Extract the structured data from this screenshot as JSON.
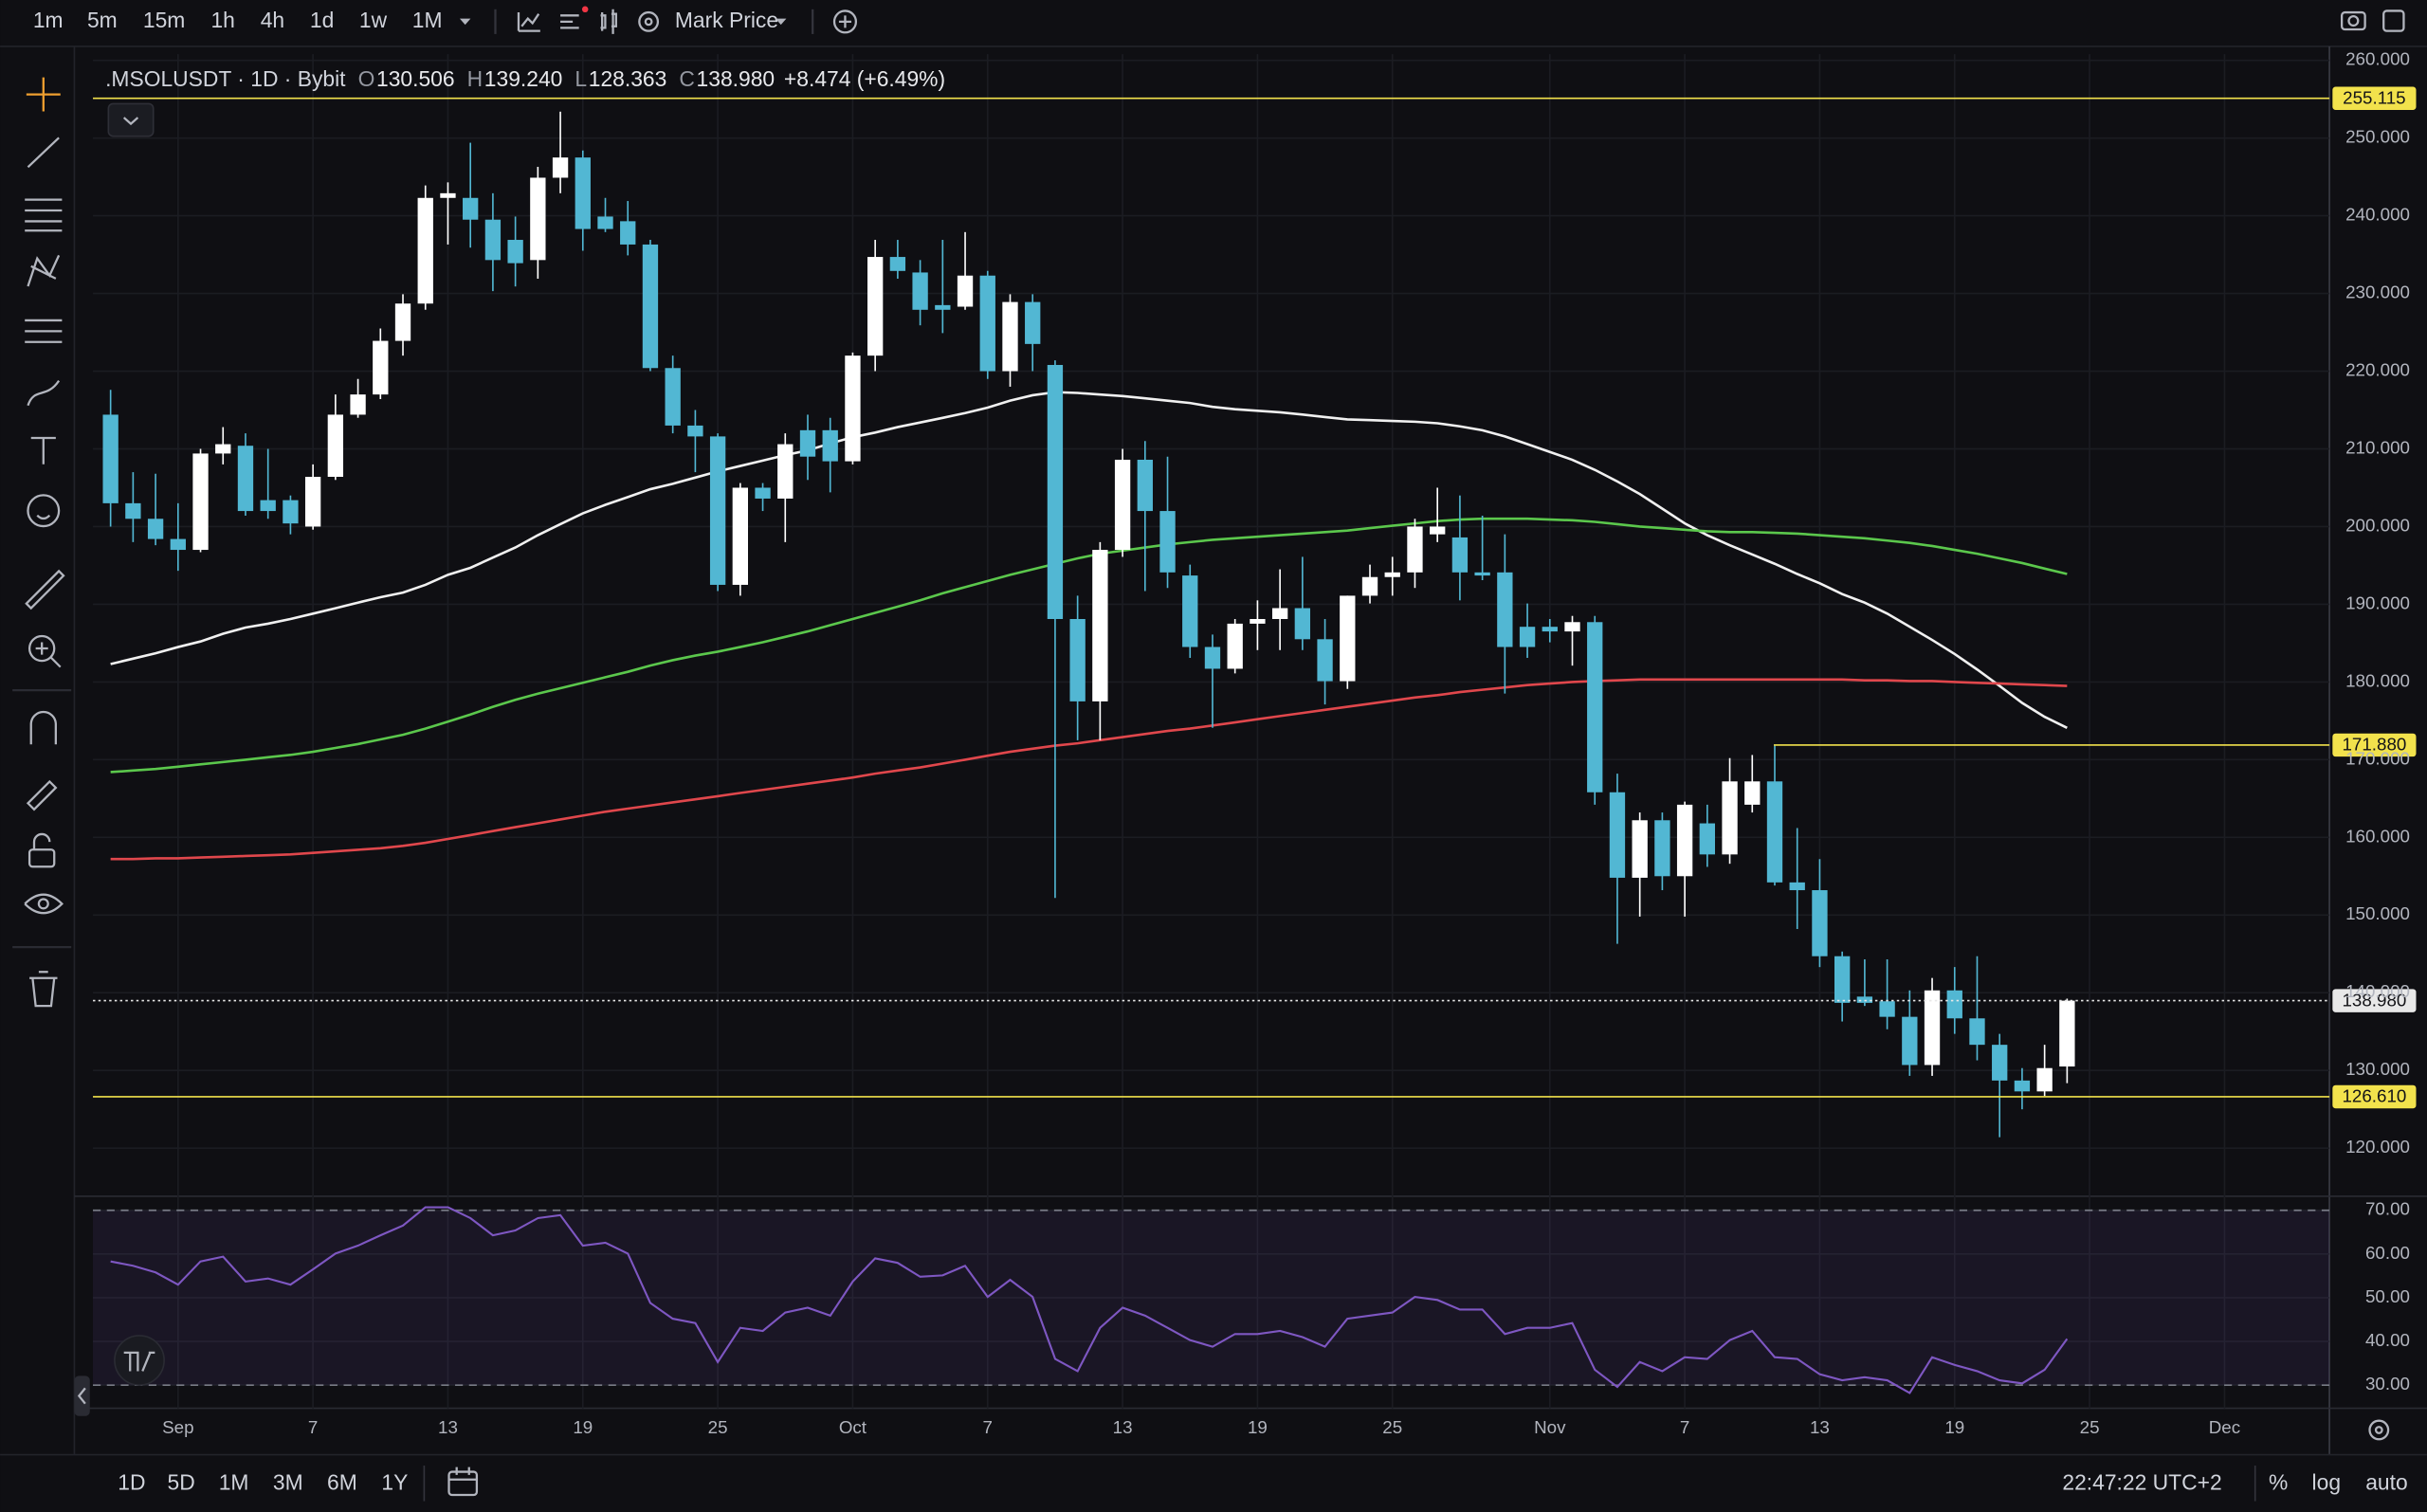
{
  "toolbar": {
    "intervals": [
      "1m",
      "5m",
      "15m",
      "1h",
      "4h",
      "1d",
      "1w",
      "1M"
    ],
    "active_interval": "1d",
    "price_type": "Mark Price"
  },
  "header": {
    "symbol": ".MSOLUSDT · 1D · Bybit",
    "fields": [
      {
        "key": "O",
        "value": "130.506"
      },
      {
        "key": "H",
        "value": "139.240"
      },
      {
        "key": "L",
        "value": "128.363"
      },
      {
        "key": "C",
        "value": "138.980"
      }
    ],
    "change": "+8.474 (+6.49%)"
  },
  "chart_data": [
    {
      "type": "candlestick",
      "categories": [
        null,
        null,
        null,
        "Sep",
        null,
        null,
        null,
        null,
        null,
        "7",
        null,
        null,
        null,
        null,
        null,
        "13",
        null,
        null,
        null,
        null,
        null,
        "19",
        null,
        null,
        null,
        null,
        null,
        "25",
        null,
        null,
        null,
        null,
        null,
        "Oct",
        null,
        null,
        null,
        null,
        null,
        "7",
        null,
        null,
        null,
        null,
        null,
        "13",
        null,
        null,
        null,
        null,
        null,
        "19",
        null,
        null,
        null,
        null,
        null,
        "25",
        null,
        null,
        null,
        null,
        null,
        null,
        "Nov",
        null,
        null,
        null,
        null,
        null,
        "7",
        null,
        null,
        null,
        null,
        null,
        "13",
        null,
        null,
        null,
        null,
        null,
        "19",
        null,
        null,
        null,
        null,
        null,
        "25",
        null,
        null,
        null,
        null,
        null,
        "Dec",
        null,
        null,
        null,
        null
      ],
      "open": [
        214.4,
        203.0,
        201.0,
        198.4,
        197.0,
        209.4,
        210.4,
        203.4,
        203.4,
        200.0,
        206.4,
        214.4,
        217.0,
        223.9,
        228.7,
        242.3,
        242.3,
        239.5,
        236.9,
        234.3,
        244.9,
        247.5,
        239.9,
        239.3,
        236.3,
        220.4,
        213.0,
        211.6,
        192.5,
        205.0,
        203.6,
        212.4,
        212.4,
        208.4,
        222.0,
        234.7,
        232.7,
        228.5,
        228.3,
        232.3,
        220.0,
        228.9,
        220.8,
        188.1,
        177.5,
        197.0,
        208.6,
        202.0,
        193.7,
        184.5,
        181.7,
        187.5,
        188.1,
        189.5,
        185.5,
        180.1,
        191.1,
        193.5,
        194.1,
        199.0,
        198.6,
        194.1,
        194.1,
        187.1,
        187.1,
        186.5,
        187.7,
        165.8,
        154.8,
        162.2,
        155.0,
        161.8,
        157.8,
        164.2,
        167.2,
        154.2,
        153.2,
        144.7,
        139.5,
        138.9,
        136.9,
        130.7,
        140.3,
        136.7,
        133.3,
        128.7,
        127.3,
        130.506,
        null,
        null,
        null,
        null,
        null,
        null,
        null,
        null,
        null,
        null,
        null
      ],
      "high": [
        217.6,
        207.0,
        206.8,
        203.0,
        210.0,
        212.8,
        212.0,
        210.0,
        204.0,
        208.0,
        217.0,
        219.0,
        225.5,
        229.9,
        243.9,
        244.3,
        249.4,
        242.9,
        239.9,
        246.3,
        253.4,
        248.4,
        242.3,
        241.9,
        236.9,
        222.0,
        215.0,
        212.0,
        205.6,
        205.6,
        212.0,
        214.4,
        214.0,
        222.4,
        236.9,
        236.9,
        234.3,
        236.9,
        237.9,
        232.9,
        229.9,
        229.9,
        221.4,
        191.1,
        198.0,
        210.0,
        211.0,
        209.0,
        195.1,
        186.1,
        188.1,
        190.5,
        194.5,
        196.1,
        188.1,
        191.1,
        195.1,
        196.1,
        201.0,
        205.0,
        204.0,
        201.4,
        199.0,
        190.1,
        188.1,
        188.5,
        188.5,
        168.2,
        163.2,
        163.2,
        164.6,
        164.2,
        170.2,
        170.6,
        171.8,
        161.2,
        157.2,
        145.3,
        144.3,
        144.3,
        140.3,
        141.9,
        143.3,
        144.7,
        134.7,
        130.3,
        133.3,
        139.24,
        null,
        null,
        null,
        null,
        null,
        null,
        null,
        null,
        null,
        null,
        null
      ],
      "low": [
        200.0,
        198.0,
        197.6,
        194.3,
        196.7,
        208.0,
        201.4,
        201.0,
        199.0,
        199.6,
        206.0,
        214.0,
        216.4,
        222.0,
        227.9,
        236.3,
        235.9,
        230.3,
        230.9,
        231.9,
        242.9,
        235.5,
        237.9,
        234.9,
        220.0,
        212.0,
        207.0,
        191.7,
        191.1,
        202.0,
        198.0,
        206.0,
        204.4,
        208.0,
        220.0,
        231.9,
        225.9,
        224.9,
        227.9,
        219.0,
        218.0,
        220.0,
        152.2,
        172.5,
        172.5,
        196.1,
        191.7,
        192.1,
        183.1,
        174.1,
        181.1,
        184.1,
        184.1,
        184.1,
        177.1,
        179.1,
        190.1,
        191.1,
        192.1,
        198.0,
        190.5,
        193.1,
        178.5,
        183.1,
        185.1,
        182.1,
        164.2,
        146.3,
        149.8,
        153.2,
        149.8,
        156.2,
        156.6,
        163.2,
        153.8,
        148.2,
        143.3,
        136.3,
        138.3,
        135.3,
        129.3,
        129.3,
        134.7,
        131.3,
        121.4,
        125.0,
        126.7,
        128.363,
        null,
        null,
        null,
        null,
        null,
        null,
        null,
        null,
        null,
        null,
        null
      ],
      "close": [
        203.0,
        201.0,
        198.4,
        197.0,
        209.4,
        210.6,
        202.0,
        202.0,
        200.4,
        206.4,
        214.4,
        217.0,
        223.9,
        228.7,
        242.3,
        242.9,
        239.5,
        234.3,
        233.9,
        244.9,
        247.5,
        238.3,
        238.3,
        236.3,
        220.4,
        213.0,
        211.6,
        192.5,
        205.0,
        203.6,
        210.6,
        209.0,
        208.4,
        222.0,
        234.7,
        232.9,
        227.9,
        227.9,
        232.3,
        220.0,
        228.9,
        223.5,
        188.1,
        177.5,
        197.0,
        208.6,
        202.0,
        194.1,
        184.5,
        181.7,
        187.5,
        188.1,
        189.5,
        185.5,
        180.1,
        191.1,
        193.5,
        194.1,
        200.0,
        200.0,
        194.1,
        193.7,
        184.5,
        184.5,
        186.5,
        187.7,
        165.8,
        154.8,
        162.2,
        155.0,
        164.2,
        157.8,
        167.2,
        167.2,
        154.2,
        153.2,
        144.7,
        138.7,
        138.7,
        136.9,
        130.7,
        140.3,
        136.7,
        133.3,
        128.7,
        127.3,
        130.3,
        138.98,
        null,
        null,
        null,
        null,
        null,
        null,
        null,
        null,
        null,
        null,
        null
      ],
      "up_color": "#ffffff",
      "down_color": "#52b7d3",
      "series": [
        {
          "color": "#f0f0f0",
          "values": [
            182.3,
            183.0,
            183.7,
            184.5,
            185.2,
            186.2,
            187.0,
            187.5,
            188.1,
            188.8,
            189.5,
            190.2,
            190.9,
            191.5,
            192.5,
            193.8,
            194.7,
            196.0,
            197.3,
            198.9,
            200.3,
            201.7,
            202.8,
            203.8,
            204.8,
            205.5,
            206.3,
            207.1,
            207.8,
            208.5,
            209.2,
            209.8,
            210.7,
            211.5,
            212.1,
            212.8,
            213.4,
            214.0,
            214.6,
            215.3,
            216.2,
            216.9,
            217.3,
            217.2,
            217.0,
            216.8,
            216.5,
            216.2,
            215.9,
            215.4,
            215.1,
            214.9,
            214.7,
            214.4,
            214.1,
            213.8,
            213.7,
            213.6,
            213.5,
            213.3,
            212.9,
            212.4,
            211.6,
            210.6,
            209.6,
            208.6,
            207.3,
            205.8,
            204.2,
            202.3,
            200.4,
            198.9,
            197.6,
            196.4,
            195.2,
            193.9,
            192.7,
            191.3,
            190.2,
            188.8,
            187.1,
            185.4,
            183.6,
            181.6,
            179.5,
            177.3,
            175.5,
            174.1,
            null,
            null,
            null,
            null,
            null,
            null,
            null,
            null,
            null,
            null,
            null
          ]
        },
        {
          "color": "#5bc74c",
          "values": [
            168.4,
            168.6,
            168.8,
            169.1,
            169.4,
            169.7,
            170.0,
            170.3,
            170.6,
            171.0,
            171.5,
            172.0,
            172.6,
            173.2,
            174.0,
            174.9,
            175.8,
            176.8,
            177.7,
            178.5,
            179.2,
            179.9,
            180.6,
            181.3,
            182.1,
            182.8,
            183.4,
            183.9,
            184.5,
            185.1,
            185.8,
            186.5,
            187.3,
            188.1,
            188.9,
            189.7,
            190.5,
            191.4,
            192.2,
            193.0,
            193.8,
            194.5,
            195.2,
            195.9,
            196.5,
            196.9,
            197.3,
            197.7,
            198.0,
            198.3,
            198.5,
            198.7,
            198.9,
            199.1,
            199.3,
            199.5,
            199.8,
            200.1,
            200.4,
            200.7,
            200.9,
            201.0,
            201.0,
            201.0,
            200.9,
            200.8,
            200.6,
            200.3,
            200.0,
            199.8,
            199.6,
            199.4,
            199.3,
            199.3,
            199.2,
            199.1,
            198.9,
            198.7,
            198.5,
            198.2,
            197.9,
            197.5,
            197.0,
            196.5,
            195.9,
            195.3,
            194.6,
            193.9,
            null,
            null,
            null,
            null,
            null,
            null,
            null,
            null,
            null,
            null,
            null
          ]
        },
        {
          "color": "#e0474c",
          "values": [
            157.2,
            157.2,
            157.3,
            157.3,
            157.4,
            157.5,
            157.6,
            157.7,
            157.8,
            158.0,
            158.2,
            158.4,
            158.6,
            158.9,
            159.3,
            159.8,
            160.3,
            160.8,
            161.3,
            161.8,
            162.3,
            162.8,
            163.3,
            163.7,
            164.1,
            164.5,
            164.9,
            165.3,
            165.7,
            166.1,
            166.5,
            166.9,
            167.3,
            167.7,
            168.2,
            168.6,
            169.0,
            169.5,
            170.0,
            170.5,
            171.0,
            171.4,
            171.8,
            172.1,
            172.5,
            172.9,
            173.3,
            173.7,
            174.0,
            174.4,
            174.8,
            175.2,
            175.6,
            176.0,
            176.4,
            176.8,
            177.2,
            177.6,
            178.0,
            178.3,
            178.7,
            179.0,
            179.3,
            179.6,
            179.8,
            180.0,
            180.1,
            180.2,
            180.3,
            180.3,
            180.3,
            180.3,
            180.3,
            180.3,
            180.3,
            180.3,
            180.3,
            180.3,
            180.2,
            180.2,
            180.1,
            180.1,
            180.0,
            179.9,
            179.8,
            179.7,
            179.6,
            179.5,
            null,
            null,
            null,
            null,
            null,
            null,
            null,
            null,
            null,
            null,
            null
          ]
        }
      ],
      "price_lines": [
        {
          "value": 255.115,
          "label": "255.115",
          "color": "#f2e24c",
          "style": "solid"
        },
        {
          "value": 171.88,
          "label": "171.880",
          "color": "#f2e24c",
          "style": "solid"
        },
        {
          "value": 138.98,
          "label": "138.980",
          "color": "#e8e8e8",
          "style": "dotted"
        },
        {
          "value": 126.61,
          "label": "126.610",
          "color": "#f2e24c",
          "style": "solid"
        }
      ],
      "ylim": [
        114.0,
        260.8
      ],
      "yticks": [
        {
          "value": 120,
          "label": "120.000"
        },
        {
          "value": 130,
          "label": "130.000"
        },
        {
          "value": 140,
          "label": "140.000"
        },
        {
          "value": 150,
          "label": "150.000"
        },
        {
          "value": 160,
          "label": "160.000"
        },
        {
          "value": 170,
          "label": "170.000"
        },
        {
          "value": 180,
          "label": "180.000"
        },
        {
          "value": 190,
          "label": "190.000"
        },
        {
          "value": 200,
          "label": "200.000"
        },
        {
          "value": 210,
          "label": "210.000"
        },
        {
          "value": 220,
          "label": "220.000"
        },
        {
          "value": 230,
          "label": "230.000"
        },
        {
          "value": 240,
          "label": "240.000"
        },
        {
          "value": 250,
          "label": "250.000"
        },
        {
          "value": 260,
          "label": "260.000"
        }
      ],
      "grid": true
    },
    {
      "type": "line",
      "series": [
        {
          "color": "#7e57c2",
          "values": [
            58.3,
            57.3,
            55.8,
            53.0,
            58.3,
            59.4,
            53.7,
            54.4,
            53.0,
            56.5,
            60.1,
            61.9,
            64.3,
            66.5,
            70.7,
            70.7,
            68.2,
            64.3,
            65.4,
            68.2,
            68.9,
            61.9,
            62.6,
            60.1,
            48.8,
            45.2,
            44.2,
            35.3,
            43.1,
            42.4,
            46.6,
            47.7,
            45.9,
            53.7,
            59.0,
            58.0,
            54.8,
            55.1,
            57.3,
            50.2,
            54.1,
            50.2,
            36.0,
            33.2,
            43.1,
            47.7,
            45.9,
            43.1,
            40.3,
            38.8,
            41.7,
            41.7,
            42.4,
            41.0,
            38.8,
            45.2,
            45.9,
            46.6,
            50.2,
            49.5,
            47.3,
            47.3,
            41.7,
            43.1,
            43.1,
            44.2,
            33.5,
            29.6,
            35.3,
            33.2,
            36.4,
            36.0,
            40.3,
            42.4,
            36.4,
            36.0,
            32.5,
            31.1,
            31.8,
            31.1,
            28.2,
            36.4,
            34.6,
            33.2,
            31.1,
            30.4,
            33.5,
            40.6,
            null,
            null,
            null,
            null,
            null,
            null,
            null,
            null,
            null,
            null,
            null
          ]
        }
      ],
      "band": [
        30,
        70
      ],
      "ylim": [
        24.7,
        72.5
      ],
      "yticks": [
        {
          "value": 30,
          "label": "30.00"
        },
        {
          "value": 40,
          "label": "40.00"
        },
        {
          "value": 50,
          "label": "50.00"
        },
        {
          "value": 60,
          "label": "60.00"
        },
        {
          "value": 70,
          "label": "70.00"
        }
      ],
      "grid": true
    }
  ],
  "bottom_bar": {
    "ranges": [
      "1D",
      "5D",
      "1M",
      "3M",
      "6M",
      "1Y"
    ],
    "time": "22:47:22 UTC+2",
    "options": [
      "%",
      "log",
      "auto"
    ]
  }
}
